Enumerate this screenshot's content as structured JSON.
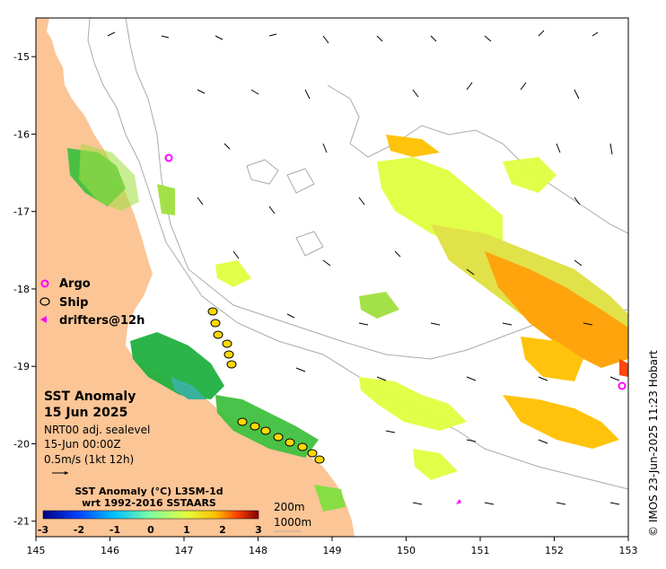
{
  "map": {
    "lon_range": [
      145,
      153
    ],
    "lat_range": [
      -21.2,
      -14.5
    ],
    "x_ticks": [
      "145",
      "146",
      "147",
      "148",
      "149",
      "150",
      "151",
      "152",
      "153"
    ],
    "y_ticks": [
      "-15",
      "-16",
      "-17",
      "-18",
      "-19",
      "-20",
      "-21"
    ],
    "colors": {
      "land": "#fbc596",
      "frame": "#000000",
      "contour": "#aaaaaa",
      "argo": "#ff00ff"
    }
  },
  "legend": {
    "argo_label": "Argo",
    "ship_label": "Ship",
    "drifters_label": "drifters@12h"
  },
  "info": {
    "title": "SST Anomaly",
    "date": "15 Jun 2025",
    "sealevel": "NRT00 adj. sealevel",
    "time": "15-Jun 00:00Z",
    "vector_scale": "0.5m/s (1kt 12h)"
  },
  "colorbar": {
    "title_line1": "SST Anomaly (°C) L3SM-1d",
    "title_line2": "wrt 1992-2016 SSTAARS",
    "ticks": [
      "-3",
      "-2",
      "-1",
      "0",
      "1",
      "2",
      "3"
    ],
    "colors": [
      "#000080",
      "#0040ff",
      "#00c0ff",
      "#80ffa0",
      "#e0ff40",
      "#ffc000",
      "#ff4000",
      "#800000"
    ]
  },
  "depth_legend": {
    "label_200": "200m",
    "label_1000": "1000m"
  },
  "credit": "© IMOS 23-Jun-2025 11:23 Hobart"
}
